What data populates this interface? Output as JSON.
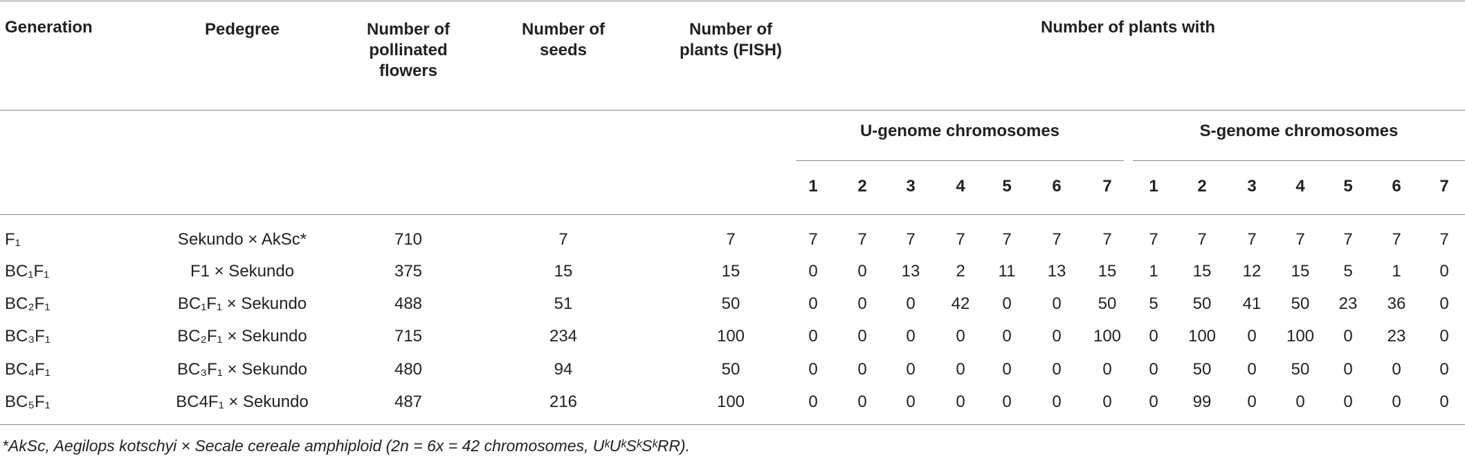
{
  "table": {
    "header": {
      "columns": [
        "Generation",
        "Pedegree",
        "Number of pollinated flowers",
        "Number of seeds",
        "Number of plants (FISH)"
      ],
      "group": "Number of plants with",
      "subgroups": [
        "U-genome chromosomes",
        "S-genome chromosomes"
      ],
      "chromosomes": [
        1,
        2,
        3,
        4,
        5,
        6,
        7,
        1,
        2,
        3,
        4,
        5,
        6,
        7
      ]
    },
    "rows": [
      [
        "F₁",
        "Sekundo × AkSc*",
        710,
        7,
        7,
        7,
        7,
        7,
        7,
        7,
        7,
        7,
        7,
        7,
        7,
        7,
        7,
        7,
        7
      ],
      [
        "BC₁F₁",
        "F1 × Sekundo",
        375,
        15,
        15,
        0,
        0,
        13,
        2,
        11,
        13,
        15,
        1,
        15,
        12,
        15,
        5,
        1,
        0
      ],
      [
        "BC₂F₁",
        "BC₁F₁ × Sekundo",
        488,
        51,
        50,
        0,
        0,
        0,
        42,
        0,
        0,
        50,
        5,
        50,
        41,
        50,
        23,
        36,
        0
      ],
      [
        "BC₃F₁",
        "BC₂F₁ × Sekundo",
        715,
        234,
        100,
        0,
        0,
        0,
        0,
        0,
        0,
        100,
        0,
        100,
        0,
        100,
        0,
        23,
        0
      ],
      [
        "BC₄F₁",
        "BC₃F₁ × Sekundo",
        480,
        94,
        50,
        0,
        0,
        0,
        0,
        0,
        0,
        0,
        0,
        50,
        0,
        50,
        0,
        0,
        0
      ],
      [
        "BC₅F₁",
        "BC4F₁ × Sekundo",
        487,
        216,
        100,
        0,
        0,
        0,
        0,
        0,
        0,
        0,
        0,
        99,
        0,
        0,
        0,
        0,
        0
      ]
    ],
    "footnote": "*AkSc, Aegilops kotschyi × Secale cereale amphiploid (2n = 6x = 42 chromosomes, UᵏUᵏSᵏSᵏRR)."
  }
}
